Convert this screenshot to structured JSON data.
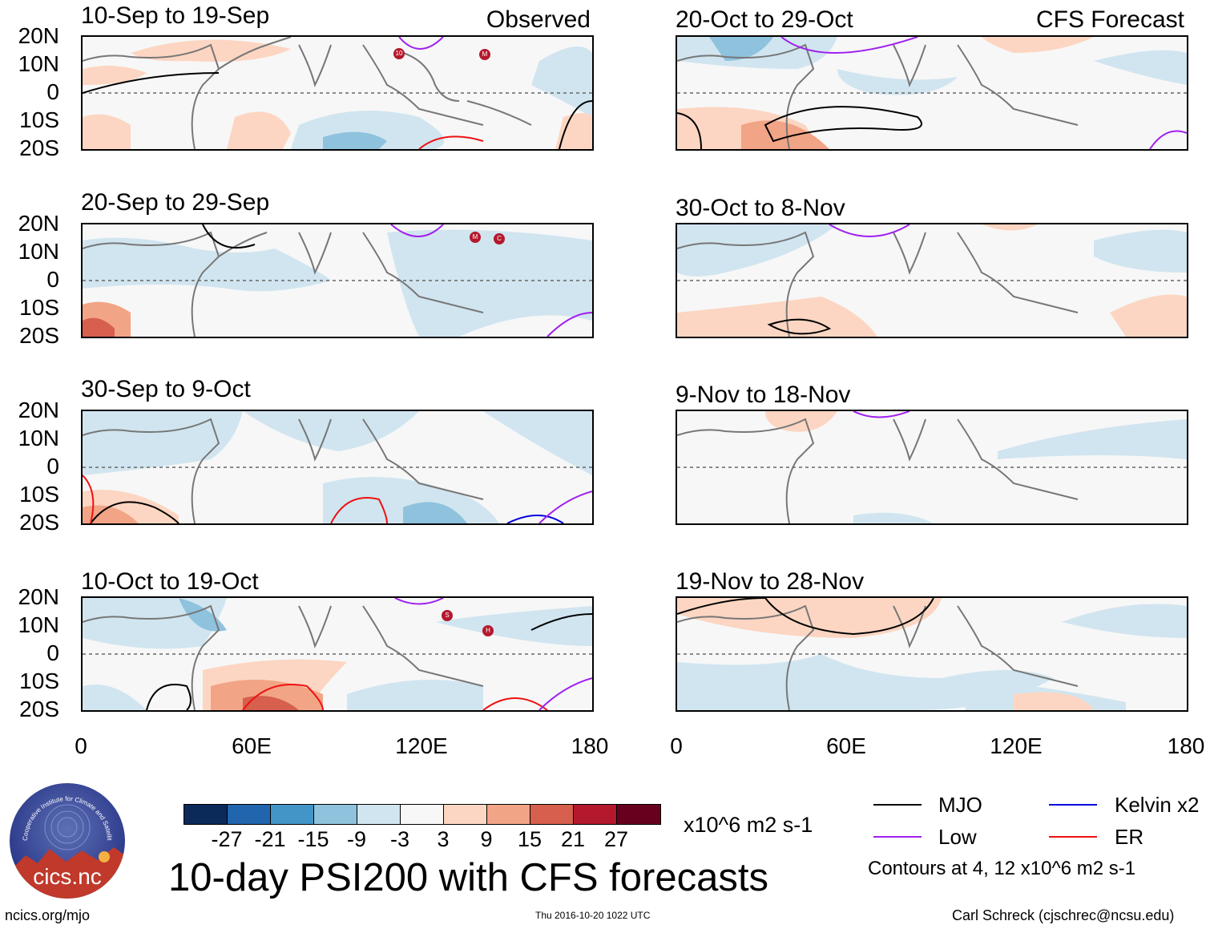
{
  "header": {
    "left": "Observed",
    "right": "CFS Forecast"
  },
  "panels_left": [
    {
      "title": "10-Sep to 19-Sep"
    },
    {
      "title": "20-Sep to 29-Sep"
    },
    {
      "title": "30-Sep to 9-Oct"
    },
    {
      "title": "10-Oct to 19-Oct"
    }
  ],
  "panels_right": [
    {
      "title": "20-Oct to 29-Oct"
    },
    {
      "title": "30-Oct to 8-Nov"
    },
    {
      "title": "9-Nov to 18-Nov"
    },
    {
      "title": "19-Nov to 28-Nov"
    }
  ],
  "axes": {
    "lat_labels": [
      "20N",
      "10N",
      "0",
      "10S",
      "20S"
    ],
    "lon_labels": [
      "0",
      "60E",
      "120E",
      "180"
    ]
  },
  "colorbar": {
    "colors": [
      "#0b2a5a",
      "#2065ad",
      "#4394c7",
      "#8fc2dd",
      "#d1e5f0",
      "#f7f7f7",
      "#fcd6c2",
      "#f2a486",
      "#d6604d",
      "#b4182d",
      "#67001f"
    ],
    "labels": [
      "-27",
      "-21",
      "-15",
      "-9",
      "-3",
      "3",
      "9",
      "15",
      "21",
      "27"
    ],
    "units": "x10^6 m2 s-1"
  },
  "main_title": "10-day PSI200 with CFS forecasts",
  "legend": {
    "items": [
      {
        "label": "MJO",
        "color": "#000000"
      },
      {
        "label": "Kelvin x2",
        "color": "#0000dd"
      },
      {
        "label": "Low",
        "color": "#a020f0"
      },
      {
        "label": "ER",
        "color": "#ee1111"
      }
    ],
    "contours_note": "Contours at 4, 12 x10^6 m2 s-1"
  },
  "logo": {
    "text": "cics.nc",
    "ring_text": "Cooperative Institute for Climate and Satellites"
  },
  "footer": {
    "left": "ncics.org/mjo",
    "center": "Thu 2016-10-20 1022 UTC",
    "right": "Carl Schreck (cjschrec@ncsu.edu)"
  },
  "storm_markers": [
    "10",
    "M",
    "M",
    "C",
    "S",
    "H"
  ]
}
